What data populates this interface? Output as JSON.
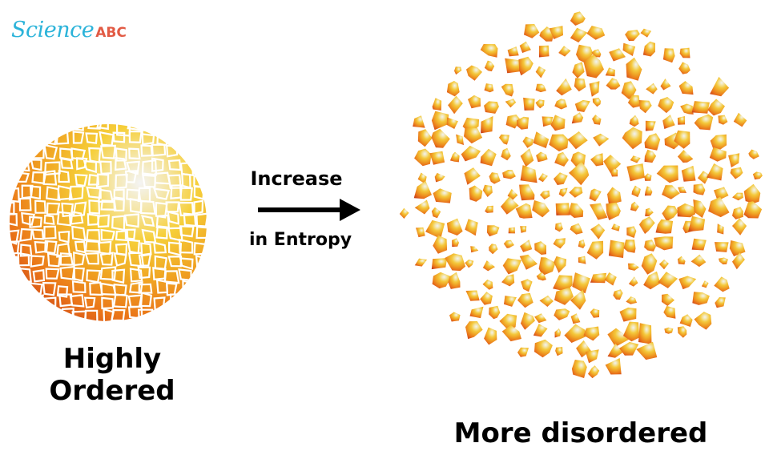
{
  "logo": {
    "science": "Science",
    "abc": "ABC",
    "science_color": "#2BB3D9",
    "abc_color": "#E25B45"
  },
  "ordered": {
    "label_line1": "Highly",
    "label_line2": "Ordered"
  },
  "arrow": {
    "label_top": "Increase",
    "label_bottom": "in Entropy"
  },
  "disordered": {
    "label": "More disordered"
  },
  "palette": {
    "center": "#f2f2f2",
    "mid": "#f7cf3a",
    "outer": "#ee7d1c",
    "edge": "#d44a1a",
    "grout": "#ffffff"
  }
}
